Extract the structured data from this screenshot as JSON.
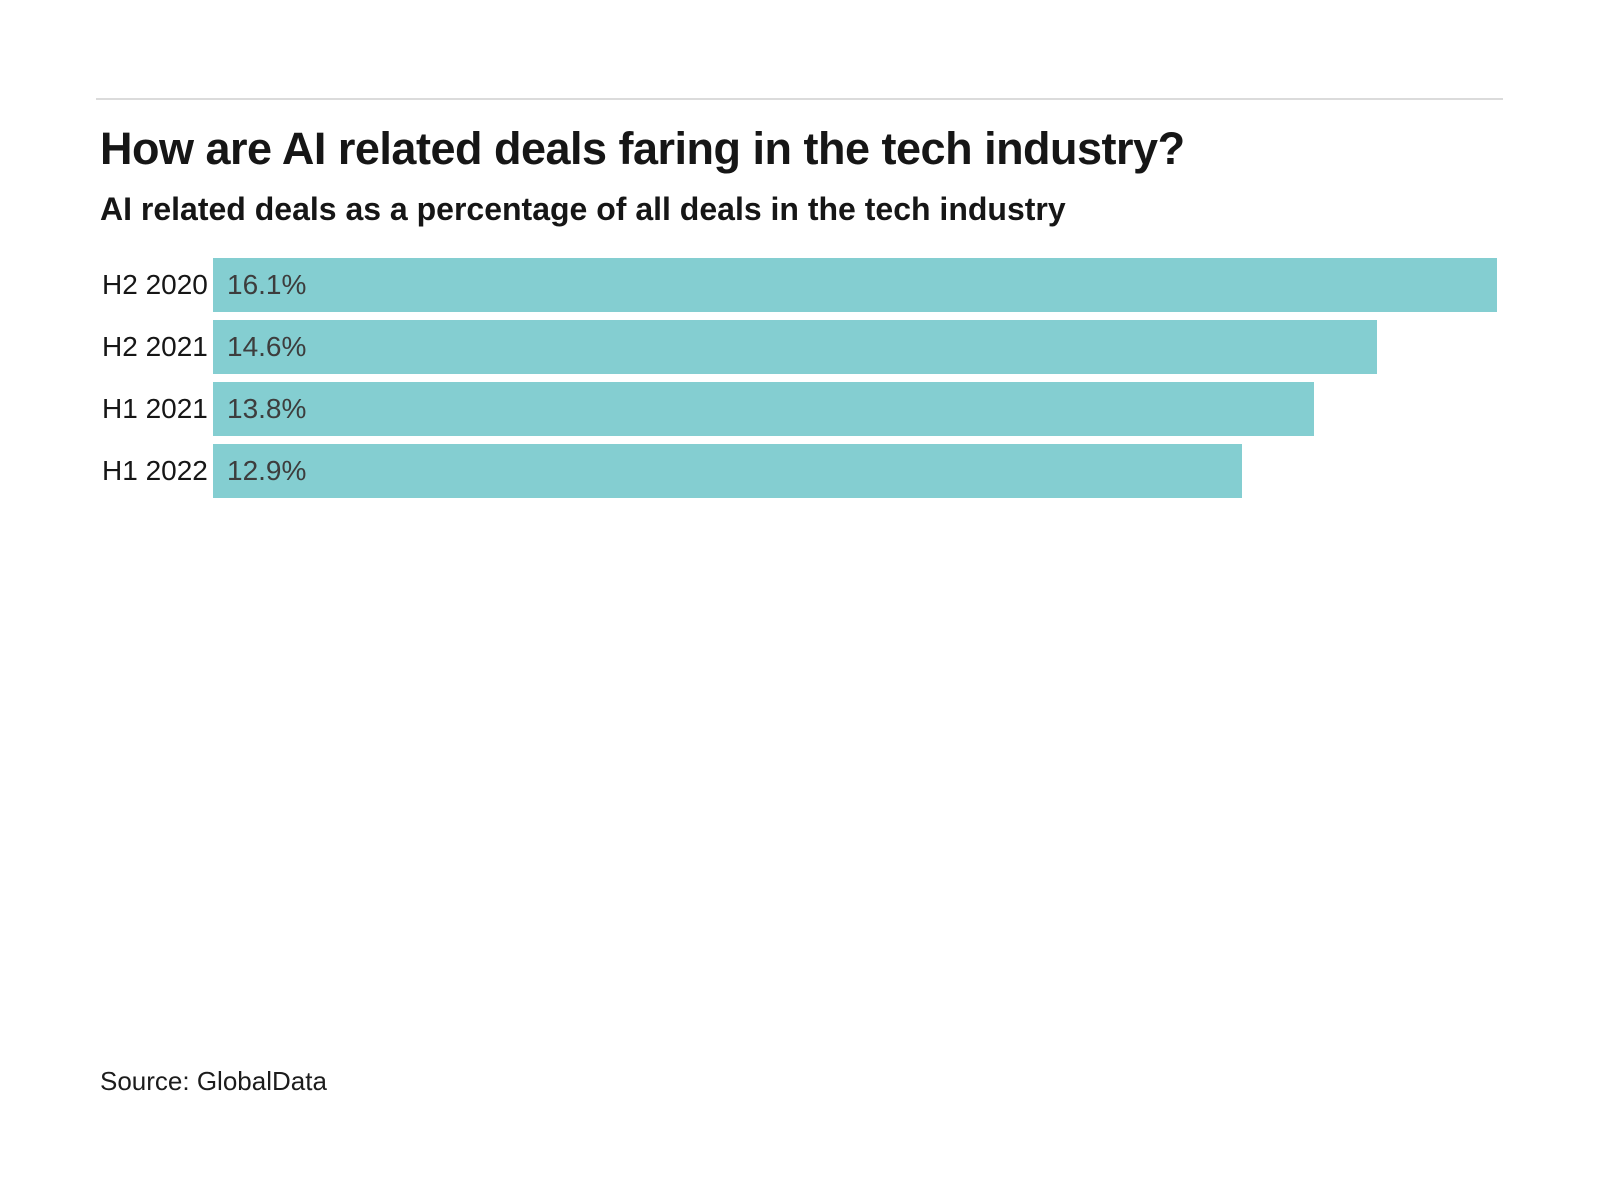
{
  "chart_data": {
    "type": "bar",
    "orientation": "horizontal",
    "title": "How are AI related deals faring in the tech industry?",
    "subtitle": "AI related deals as a percentage of all deals in the tech industry",
    "categories": [
      "H2 2020",
      "H2 2021",
      "H1 2021",
      "H1 2022"
    ],
    "values": [
      16.1,
      14.6,
      13.8,
      12.9
    ],
    "value_labels": [
      "16.1%",
      "14.6%",
      "13.8%",
      "12.9%"
    ],
    "unit": "%",
    "xlim": [
      0,
      16.1
    ],
    "bar_color": "#84ced1",
    "value_label_color": "#3d3d3d",
    "category_label_color": "#161616",
    "divider_color": "#dbdbdb",
    "grid": false,
    "legend": false,
    "source": "Source: GlobalData"
  }
}
